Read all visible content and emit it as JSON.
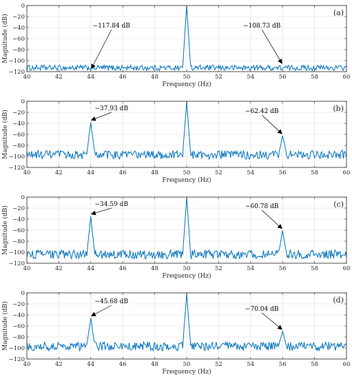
{
  "figure": {
    "colors": {
      "signal": "#0072BD",
      "grid": "#dfdfdf",
      "axis": "#262626",
      "annotation": "#000000"
    }
  },
  "chart_data": [
    {
      "type": "line",
      "panel_label": "(a)",
      "xlabel": "Frequency (Hz)",
      "ylabel": "Magnitude (dB)",
      "xlim": [
        40,
        60
      ],
      "ylim": [
        -120,
        0
      ],
      "x_ticks": [
        40,
        42,
        44,
        46,
        48,
        50,
        52,
        54,
        56,
        58,
        60
      ],
      "y_ticks": [
        0,
        -20,
        -40,
        -60,
        -80,
        -100,
        -120
      ],
      "grid": true,
      "series": [
        {
          "peaks": [
            {
              "x": 50,
              "y": 0
            }
          ],
          "noise_floor": -113,
          "noise_amplitude": 5
        }
      ],
      "annotations": [
        {
          "text": "−117.84 dB",
          "x": 44,
          "y": -117.84
        },
        {
          "text": "−108.73 dB",
          "x": 56,
          "y": -108.73
        }
      ]
    },
    {
      "type": "line",
      "panel_label": "(b)",
      "xlabel": "Frequency (Hz)",
      "ylabel": "Magnitude (dB)",
      "xlim": [
        40,
        60
      ],
      "ylim": [
        -120,
        0
      ],
      "x_ticks": [
        40,
        42,
        44,
        46,
        48,
        50,
        52,
        54,
        56,
        58,
        60
      ],
      "y_ticks": [
        0,
        -20,
        -40,
        -60,
        -80,
        -100,
        -120
      ],
      "grid": true,
      "series": [
        {
          "peaks": [
            {
              "x": 44,
              "y": -37.93
            },
            {
              "x": 50,
              "y": 0
            },
            {
              "x": 56,
              "y": -62.42
            }
          ],
          "noise_floor": -97,
          "noise_amplitude": 8
        }
      ],
      "annotations": [
        {
          "text": "−37.93 dB",
          "x": 44,
          "y": -37.93
        },
        {
          "text": "−62.42 dB",
          "x": 56,
          "y": -62.42
        }
      ]
    },
    {
      "type": "line",
      "panel_label": "(c)",
      "xlabel": "Frequency (Hz)",
      "ylabel": "Magnitude (dB)",
      "xlim": [
        40,
        60
      ],
      "ylim": [
        -120,
        0
      ],
      "x_ticks": [
        40,
        42,
        44,
        46,
        48,
        50,
        52,
        54,
        56,
        58,
        60
      ],
      "y_ticks": [
        0,
        -20,
        -40,
        -60,
        -80,
        -100,
        -120
      ],
      "grid": true,
      "series": [
        {
          "peaks": [
            {
              "x": 44,
              "y": -34.59
            },
            {
              "x": 50,
              "y": 0
            },
            {
              "x": 56,
              "y": -60.78
            }
          ],
          "noise_floor": -104,
          "noise_amplitude": 8
        }
      ],
      "annotations": [
        {
          "text": "−34.59 dB",
          "x": 44,
          "y": -34.59
        },
        {
          "text": "−60.78 dB",
          "x": 56,
          "y": -60.78
        }
      ]
    },
    {
      "type": "line",
      "panel_label": "(d)",
      "xlabel": "Frequency (Hz)",
      "ylabel": "Magnitude (dB)",
      "xlim": [
        40,
        60
      ],
      "ylim": [
        -120,
        0
      ],
      "x_ticks": [
        40,
        42,
        44,
        46,
        48,
        50,
        52,
        54,
        56,
        58,
        60
      ],
      "y_ticks": [
        0,
        -20,
        -40,
        -60,
        -80,
        -100,
        -120
      ],
      "grid": true,
      "series": [
        {
          "peaks": [
            {
              "x": 44,
              "y": -45.68
            },
            {
              "x": 50,
              "y": 0
            },
            {
              "x": 56,
              "y": -70.04
            }
          ],
          "noise_floor": -97,
          "noise_amplitude": 8
        }
      ],
      "annotations": [
        {
          "text": "−45.68 dB",
          "x": 44,
          "y": -45.68
        },
        {
          "text": "−70.04 dB",
          "x": 56,
          "y": -70.04
        }
      ]
    }
  ]
}
